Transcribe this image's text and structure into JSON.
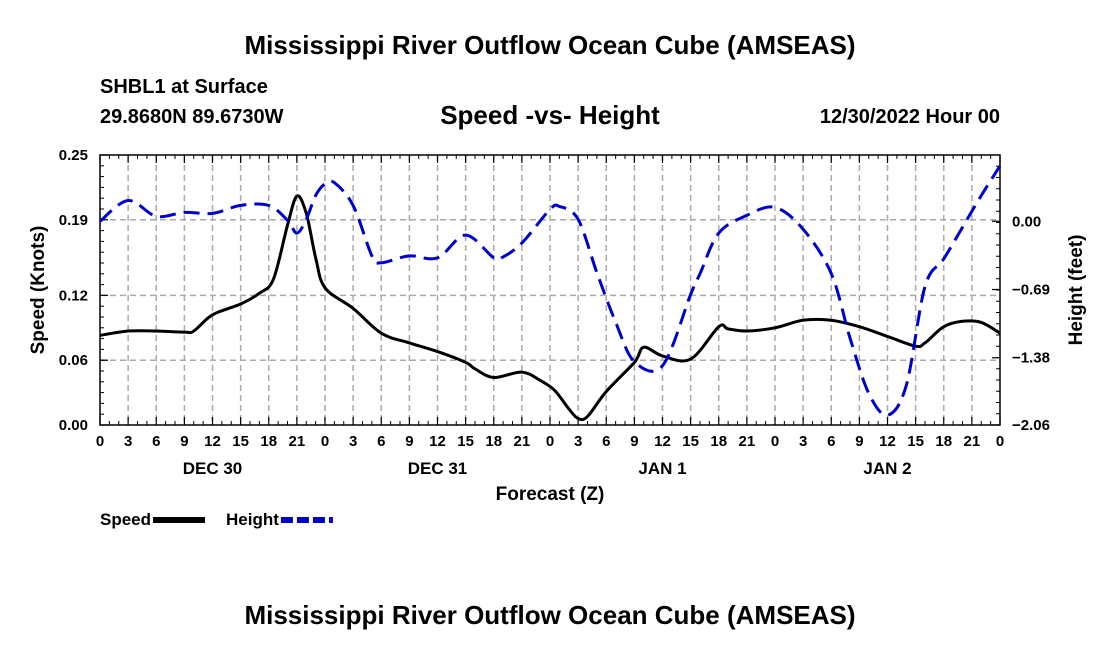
{
  "header": {
    "title": "Mississippi River Outflow Ocean Cube (AMSEAS)",
    "station": "SHBL1 at Surface",
    "coordinates": "29.8680N  89.6730W",
    "chart_title": "Speed -vs- Height",
    "timestamp": "12/30/2022 Hour 00"
  },
  "footer": {
    "title": "Mississippi River Outflow Ocean Cube (AMSEAS)"
  },
  "chart_data": {
    "type": "line",
    "title": "Speed -vs- Height",
    "xlabel": "Forecast (Z)",
    "ylabel": "Speed (Knots)",
    "y2label": "Height (feet)",
    "x_range": [
      0,
      96
    ],
    "x_tick_labels": [
      "0",
      "3",
      "6",
      "9",
      "12",
      "15",
      "18",
      "21",
      "0",
      "3",
      "6",
      "9",
      "12",
      "15",
      "18",
      "21",
      "0",
      "3",
      "6",
      "9",
      "12",
      "15",
      "18",
      "21",
      "0",
      "3",
      "6",
      "9",
      "12",
      "15",
      "18",
      "21",
      "0"
    ],
    "day_labels": [
      {
        "label": "DEC 30",
        "x": 12
      },
      {
        "label": "DEC 31",
        "x": 36
      },
      {
        "label": "JAN 1",
        "x": 60
      },
      {
        "label": "JAN 2",
        "x": 84
      }
    ],
    "y_left": {
      "range": [
        0,
        0.25
      ],
      "ticks": [
        0.0,
        0.06,
        0.12,
        0.19,
        0.25
      ],
      "tick_labels": [
        "0.00",
        "0.06",
        "0.12",
        "0.19",
        "0.25"
      ]
    },
    "y_right": {
      "range": [
        -2.06,
        0.67
      ],
      "ticks": [
        -2.06,
        -1.38,
        -0.69,
        0.0
      ],
      "tick_labels": [
        "−2.06",
        "−1.38",
        "−0.69",
        "0.00"
      ]
    },
    "series": [
      {
        "name": "Speed",
        "axis": "left",
        "color": "#000000",
        "style": "solid",
        "x": [
          0,
          3,
          6,
          9,
          10,
          12,
          15,
          17,
          18.5,
          20,
          21,
          22,
          23,
          24,
          27,
          30,
          33,
          36,
          39,
          40,
          42,
          45,
          47,
          48.5,
          50,
          51,
          52,
          54,
          57,
          58,
          60,
          63,
          66,
          67,
          69,
          72,
          75,
          78,
          81,
          84,
          87,
          88,
          90,
          92,
          94,
          96
        ],
        "values": [
          0.083,
          0.087,
          0.087,
          0.086,
          0.087,
          0.102,
          0.112,
          0.122,
          0.135,
          0.185,
          0.212,
          0.196,
          0.155,
          0.127,
          0.108,
          0.085,
          0.076,
          0.068,
          0.058,
          0.052,
          0.044,
          0.049,
          0.041,
          0.032,
          0.015,
          0.006,
          0.008,
          0.031,
          0.058,
          0.072,
          0.064,
          0.061,
          0.091,
          0.089,
          0.087,
          0.09,
          0.097,
          0.097,
          0.091,
          0.082,
          0.073,
          0.076,
          0.091,
          0.096,
          0.095,
          0.085
        ]
      },
      {
        "name": "Height",
        "axis": "right",
        "color": "#0000cc",
        "style": "dashed",
        "x": [
          0,
          3,
          6,
          9,
          12,
          15,
          18,
          20,
          21,
          22,
          23,
          24,
          25,
          27,
          29,
          30,
          33,
          36,
          39,
          42,
          43,
          45,
          48,
          49,
          51,
          53,
          55,
          57,
          60,
          63,
          64,
          66,
          69,
          72,
          75,
          78,
          80,
          82,
          84,
          86,
          88,
          90,
          92,
          94,
          96
        ],
        "values": [
          0.0,
          0.21,
          0.05,
          0.09,
          0.08,
          0.16,
          0.16,
          0.01,
          -0.12,
          0.02,
          0.26,
          0.38,
          0.39,
          0.16,
          -0.35,
          -0.42,
          -0.35,
          -0.37,
          -0.14,
          -0.37,
          -0.36,
          -0.22,
          0.12,
          0.15,
          0.02,
          -0.52,
          -1.02,
          -1.42,
          -1.46,
          -0.74,
          -0.53,
          -0.12,
          0.06,
          0.14,
          -0.08,
          -0.53,
          -1.18,
          -1.74,
          -1.96,
          -1.66,
          -0.66,
          -0.38,
          -0.06,
          0.26,
          0.56
        ]
      }
    ],
    "legend": [
      {
        "label": "Speed",
        "color": "#000000",
        "style": "solid"
      },
      {
        "label": "Height",
        "color": "#0000cc",
        "style": "dashed"
      }
    ],
    "legend_position": "bottom-left",
    "grid": true
  }
}
